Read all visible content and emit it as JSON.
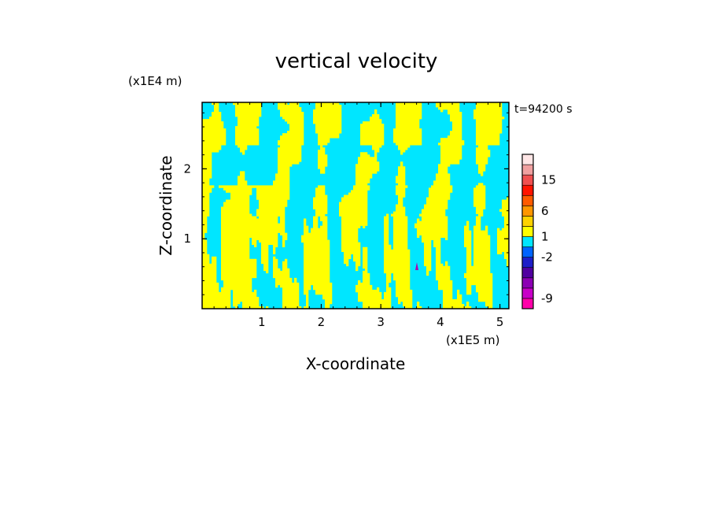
{
  "chart_data": {
    "type": "heatmap",
    "title": "vertical velocity",
    "xlabel": "X-coordinate",
    "ylabel": "Z-coordinate",
    "x_multiplier": "(x1E5 m)",
    "y_multiplier": "(x1E4 m)",
    "time_label": "t=94200 s",
    "xlim": [
      0,
      5.15
    ],
    "ylim": [
      0,
      2.95
    ],
    "x_ticks": [
      1,
      2,
      3,
      4,
      5
    ],
    "y_ticks": [
      1,
      2
    ],
    "field_values": [
      "<-2 (cyan)",
      "-2..1 mixed",
      ">1 (yellow)"
    ],
    "colorbar": {
      "levels": [
        {
          "color": "#ff00aa"
        },
        {
          "color": "#c800c8"
        },
        {
          "color": "#8c00b4"
        },
        {
          "color": "#5000a0"
        },
        {
          "color": "#1e1ec8"
        },
        {
          "color": "#0064ff"
        },
        {
          "color": "#00e6ff"
        },
        {
          "color": "#ffff00"
        },
        {
          "color": "#ffd200"
        },
        {
          "color": "#ff9600"
        },
        {
          "color": "#ff5a00"
        },
        {
          "color": "#ff1400"
        },
        {
          "color": "#f05050"
        },
        {
          "color": "#f0a0a0"
        },
        {
          "color": "#ffe6e6"
        }
      ],
      "tick_labels": [
        {
          "label": "-9",
          "level": 1
        },
        {
          "label": "-2",
          "level": 5
        },
        {
          "label": "1",
          "level": 7
        },
        {
          "label": "6",
          "level": 9.5
        },
        {
          "label": "15",
          "level": 12.5
        }
      ]
    },
    "field_colors": {
      "positive": "#ffff00",
      "negative": "#00e6ff",
      "accent": "#b000b0"
    }
  }
}
